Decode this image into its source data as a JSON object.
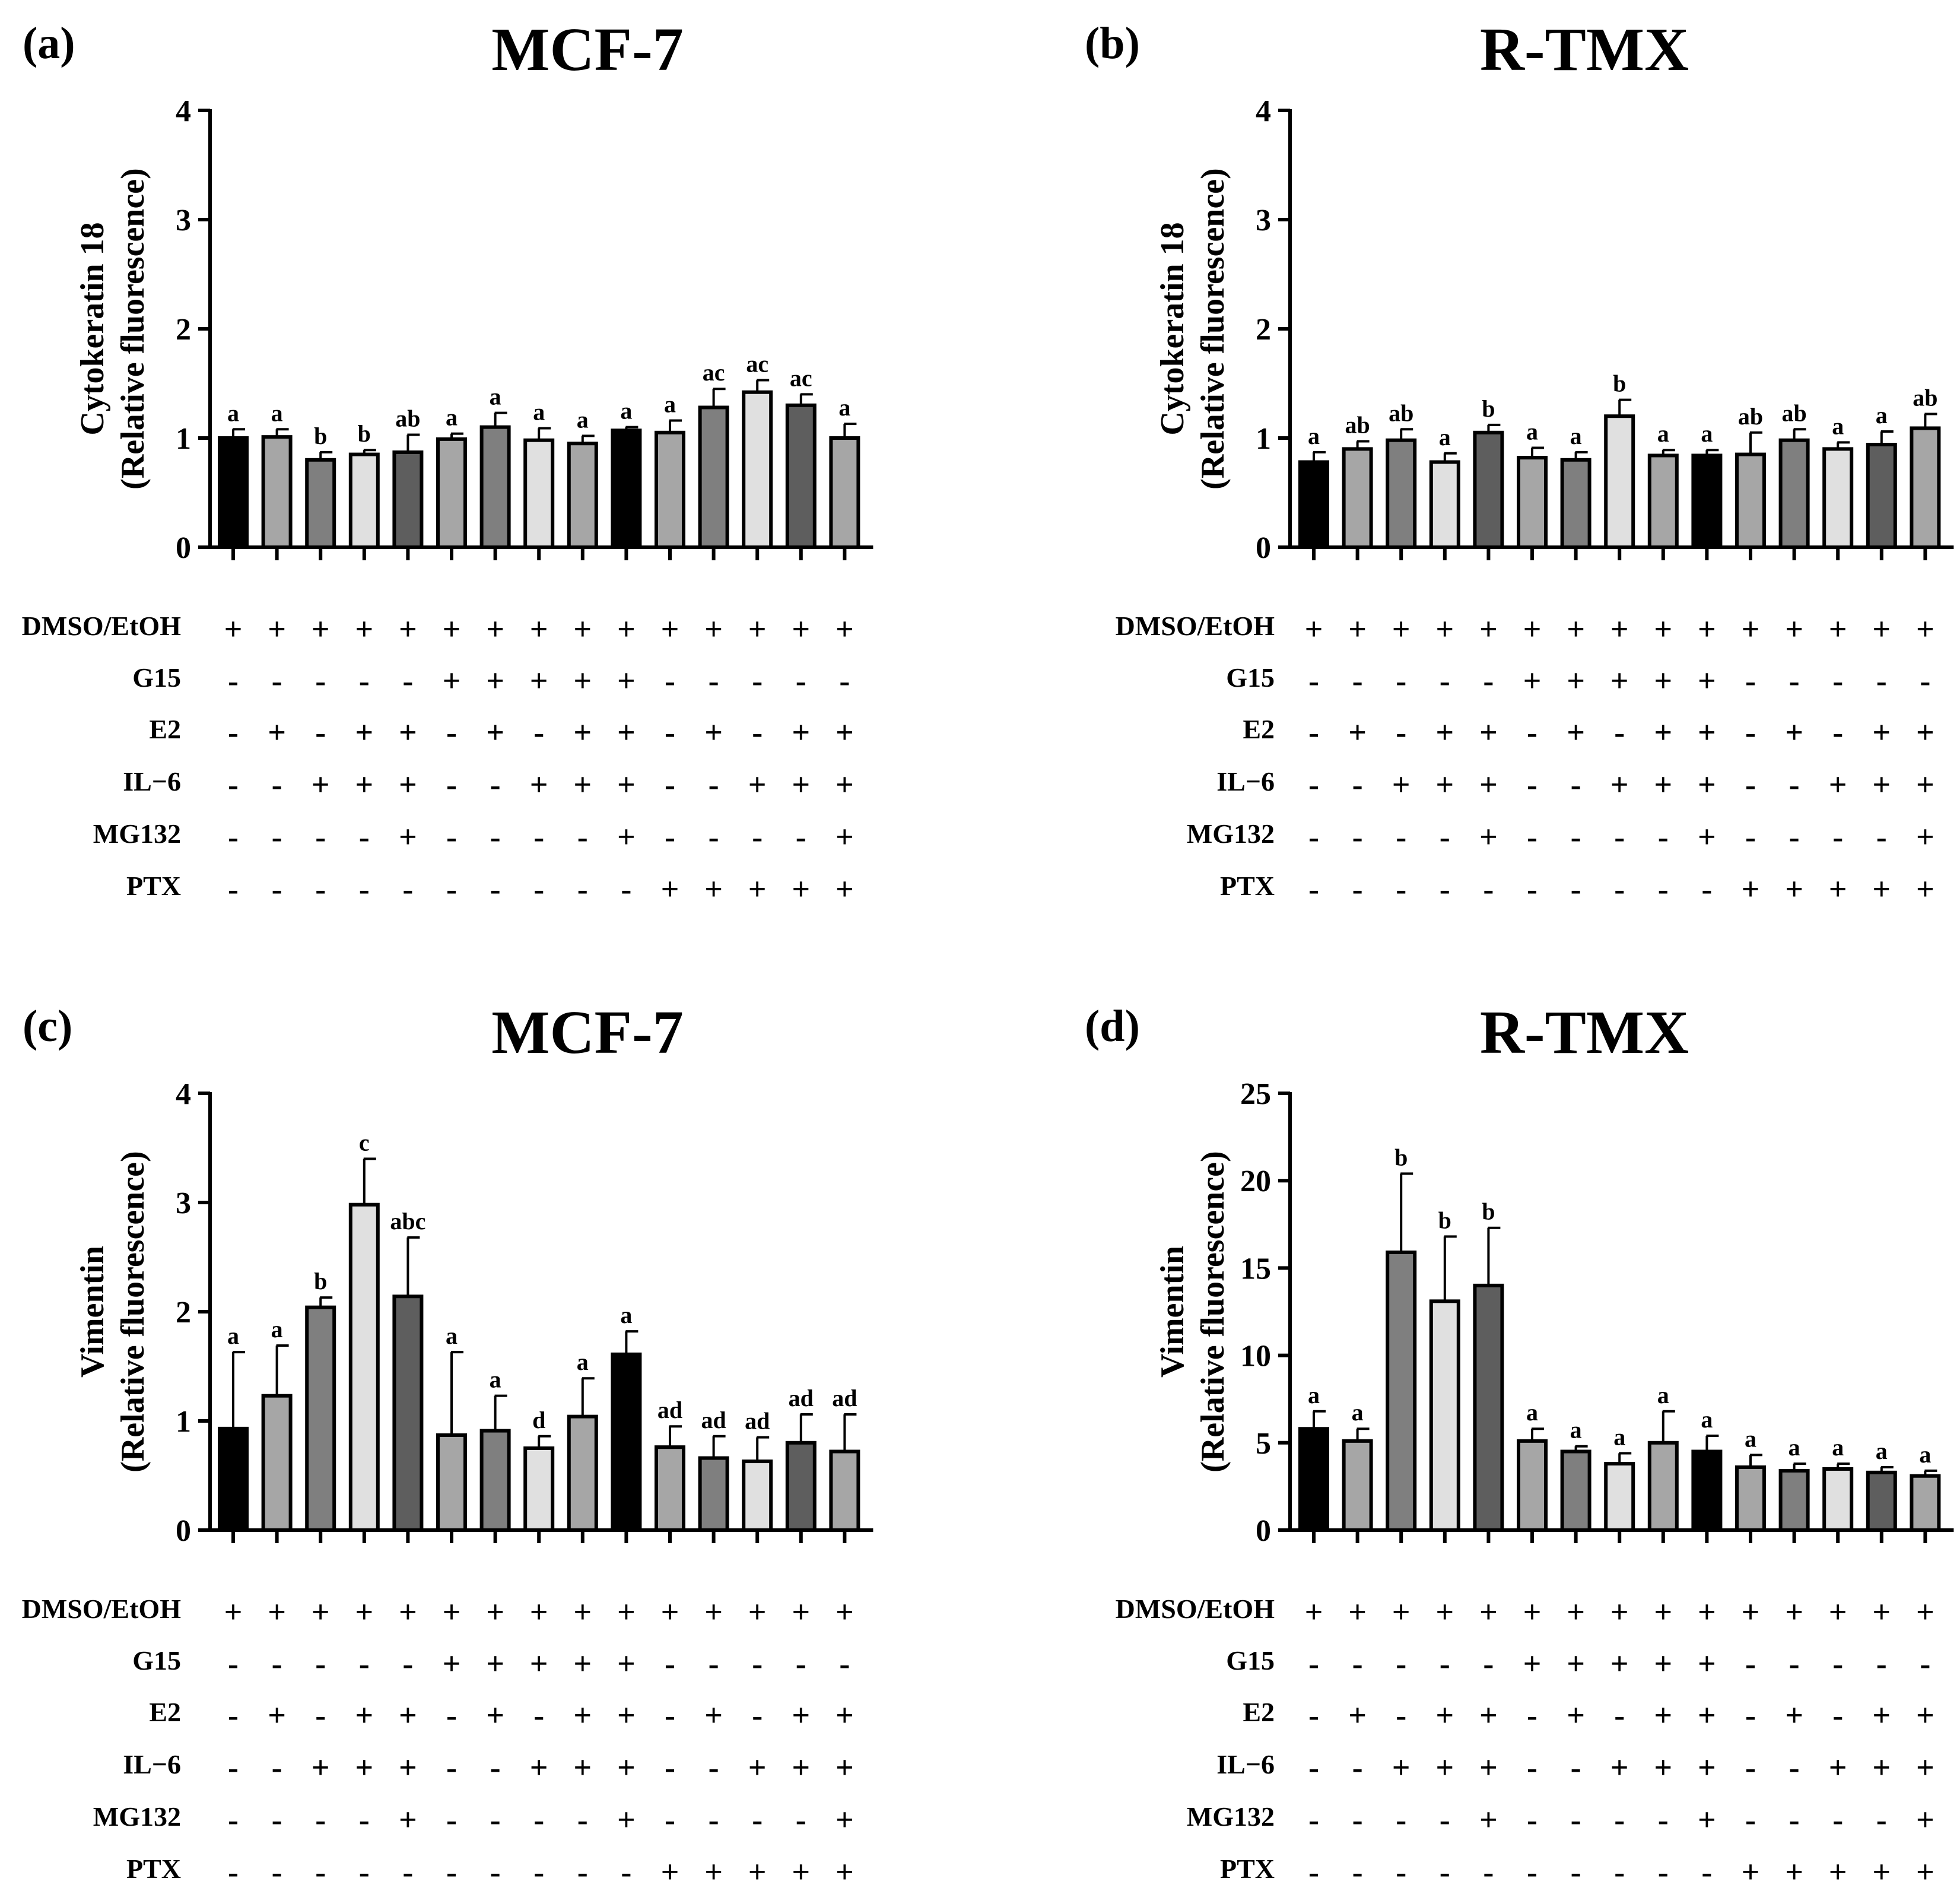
{
  "treatment_rows": [
    "DMSO/EtOH",
    "G15",
    "E2",
    "IL−6",
    "MG132",
    "PTX"
  ],
  "treatment_matrix": [
    [
      "+",
      "+",
      "+",
      "+",
      "+",
      "+",
      "+",
      "+",
      "+",
      "+",
      "+",
      "+",
      "+",
      "+",
      "+"
    ],
    [
      "-",
      "-",
      "-",
      "-",
      "-",
      "+",
      "+",
      "+",
      "+",
      "+",
      "-",
      "-",
      "-",
      "-",
      "-"
    ],
    [
      "-",
      "+",
      "-",
      "+",
      "+",
      "-",
      "+",
      "-",
      "+",
      "+",
      "-",
      "+",
      "-",
      "+",
      "+"
    ],
    [
      "-",
      "-",
      "+",
      "+",
      "+",
      "-",
      "-",
      "+",
      "+",
      "+",
      "-",
      "-",
      "+",
      "+",
      "+"
    ],
    [
      "-",
      "-",
      "-",
      "-",
      "+",
      "-",
      "-",
      "-",
      "-",
      "+",
      "-",
      "-",
      "-",
      "-",
      "+"
    ],
    [
      "-",
      "-",
      "-",
      "-",
      "-",
      "-",
      "-",
      "-",
      "-",
      "-",
      "+",
      "+",
      "+",
      "+",
      "+"
    ]
  ],
  "colors": {
    "black": "#000000",
    "mid_gray": "#a6a6a6",
    "dark_gray": "#7f7f7f",
    "light_gray": "#e0e0e0",
    "darker_gray": "#5e5e5e"
  },
  "chart_data": [
    {
      "panel": "(a)",
      "type": "bar",
      "title": "MCF-7",
      "ylabel": [
        "Cytokeratin 18",
        "(Relative fluorescence)"
      ],
      "ylim": [
        0,
        4
      ],
      "yticks": [
        0,
        1,
        2,
        3,
        4
      ],
      "values": [
        1.0,
        1.01,
        0.8,
        0.85,
        0.87,
        0.99,
        1.1,
        0.98,
        0.95,
        1.07,
        1.05,
        1.28,
        1.42,
        1.3,
        1.0
      ],
      "errors": [
        0.08,
        0.07,
        0.07,
        0.04,
        0.16,
        0.05,
        0.13,
        0.11,
        0.07,
        0.03,
        0.11,
        0.17,
        0.11,
        0.1,
        0.13
      ],
      "significance": [
        "a",
        "a",
        "b",
        "b",
        "ab",
        "a",
        "a",
        "a",
        "a",
        "a",
        "a",
        "ac",
        "ac",
        "ac",
        "a"
      ],
      "bar_colors": [
        "black",
        "mid_gray",
        "dark_gray",
        "light_gray",
        "darker_gray",
        "mid_gray",
        "dark_gray",
        "light_gray",
        "mid_gray",
        "black",
        "mid_gray",
        "dark_gray",
        "light_gray",
        "darker_gray",
        "mid_gray"
      ]
    },
    {
      "panel": "(b)",
      "type": "bar",
      "title": "R-TMX",
      "ylabel": [
        "Cytokeratin 18",
        "(Relative fluorescence)"
      ],
      "ylim": [
        0,
        4
      ],
      "yticks": [
        0,
        1,
        2,
        3,
        4
      ],
      "values": [
        0.78,
        0.9,
        0.98,
        0.78,
        1.05,
        0.82,
        0.8,
        1.2,
        0.84,
        0.84,
        0.85,
        0.98,
        0.9,
        0.94,
        1.09
      ],
      "errors": [
        0.09,
        0.07,
        0.1,
        0.08,
        0.07,
        0.09,
        0.07,
        0.15,
        0.05,
        0.05,
        0.2,
        0.1,
        0.06,
        0.12,
        0.13
      ],
      "significance": [
        "a",
        "ab",
        "ab",
        "a",
        "b",
        "a",
        "a",
        "b",
        "a",
        "a",
        "ab",
        "ab",
        "a",
        "a",
        "ab"
      ],
      "bar_colors": [
        "black",
        "mid_gray",
        "dark_gray",
        "light_gray",
        "darker_gray",
        "mid_gray",
        "dark_gray",
        "light_gray",
        "mid_gray",
        "black",
        "mid_gray",
        "dark_gray",
        "light_gray",
        "darker_gray",
        "mid_gray"
      ]
    },
    {
      "panel": "(c)",
      "type": "bar",
      "title": "MCF-7",
      "ylabel": [
        "Vimentin",
        "(Relative fluorescence)"
      ],
      "ylim": [
        0,
        4
      ],
      "yticks": [
        0,
        1,
        2,
        3,
        4
      ],
      "values": [
        0.93,
        1.23,
        2.04,
        2.98,
        2.14,
        0.87,
        0.91,
        0.75,
        1.04,
        1.61,
        0.76,
        0.66,
        0.63,
        0.8,
        0.72
      ],
      "errors": [
        0.7,
        0.46,
        0.09,
        0.42,
        0.54,
        0.76,
        0.32,
        0.11,
        0.35,
        0.21,
        0.19,
        0.2,
        0.22,
        0.26,
        0.34
      ],
      "significance": [
        "a",
        "a",
        "b",
        "c",
        "abc",
        "a",
        "a",
        "d",
        "a",
        "a",
        "ad",
        "ad",
        "ad",
        "ad",
        "ad"
      ],
      "bar_colors": [
        "black",
        "mid_gray",
        "dark_gray",
        "light_gray",
        "darker_gray",
        "mid_gray",
        "dark_gray",
        "light_gray",
        "mid_gray",
        "black",
        "mid_gray",
        "dark_gray",
        "light_gray",
        "darker_gray",
        "mid_gray"
      ]
    },
    {
      "panel": "(d)",
      "type": "bar",
      "title": "R-TMX",
      "ylabel": [
        "Vimentin",
        "(Relative fluorescence)"
      ],
      "ylim": [
        0,
        25
      ],
      "yticks": [
        0,
        5,
        10,
        15,
        20,
        25
      ],
      "values": [
        5.8,
        5.1,
        15.9,
        13.1,
        14.0,
        5.1,
        4.5,
        3.8,
        5.0,
        4.5,
        3.6,
        3.4,
        3.5,
        3.3,
        3.1
      ],
      "errors": [
        1.0,
        0.7,
        4.5,
        3.7,
        3.3,
        0.7,
        0.3,
        0.6,
        1.8,
        0.9,
        0.7,
        0.4,
        0.3,
        0.3,
        0.3
      ],
      "significance": [
        "a",
        "a",
        "b",
        "b",
        "b",
        "a",
        "a",
        "a",
        "a",
        "a",
        "a",
        "a",
        "a",
        "a",
        "a"
      ],
      "bar_colors": [
        "black",
        "mid_gray",
        "dark_gray",
        "light_gray",
        "darker_gray",
        "mid_gray",
        "dark_gray",
        "light_gray",
        "mid_gray",
        "black",
        "mid_gray",
        "dark_gray",
        "light_gray",
        "darker_gray",
        "mid_gray"
      ]
    }
  ]
}
